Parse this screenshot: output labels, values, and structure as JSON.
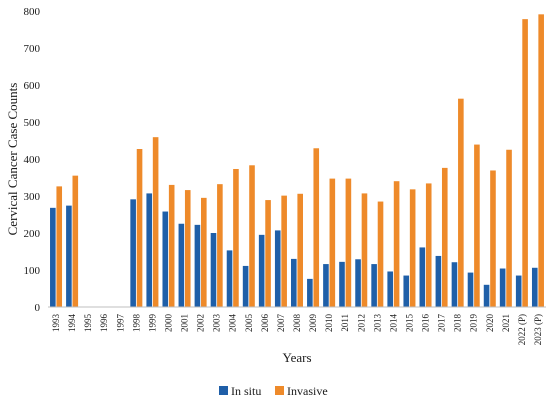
{
  "chart_data": {
    "type": "bar",
    "title": "",
    "xlabel": "Years",
    "ylabel": "Cervical Cancer Case Counts",
    "ylim": [
      0,
      800
    ],
    "yticks": [
      0,
      100,
      200,
      300,
      400,
      500,
      600,
      700,
      800
    ],
    "grid": false,
    "legend_position": "bottom",
    "categories": [
      "1993",
      "1994",
      "1995",
      "1996",
      "1997",
      "1998",
      "1999",
      "2000",
      "2001",
      "2002",
      "2003",
      "2004",
      "2005",
      "2006",
      "2007",
      "2008",
      "2009",
      "2010",
      "2011",
      "2012",
      "2013",
      "2014",
      "2015",
      "2016",
      "2017",
      "2018",
      "2019",
      "2020",
      "2021",
      "2022 (P)",
      "2023 (P)"
    ],
    "series": [
      {
        "name": "In situ",
        "color": "#1f5fa8",
        "values": [
          268,
          274,
          null,
          null,
          null,
          291,
          307,
          258,
          225,
          222,
          200,
          153,
          111,
          195,
          207,
          130,
          76,
          116,
          122,
          129,
          116,
          96,
          85,
          161,
          138,
          121,
          93,
          60,
          104,
          85,
          106
        ]
      },
      {
        "name": "Invasive",
        "color": "#ee8a2a",
        "values": [
          326,
          355,
          null,
          null,
          null,
          427,
          459,
          330,
          316,
          295,
          332,
          373,
          383,
          289,
          301,
          306,
          429,
          347,
          347,
          307,
          285,
          340,
          318,
          334,
          376,
          563,
          439,
          369,
          425,
          778,
          791
        ]
      }
    ]
  }
}
